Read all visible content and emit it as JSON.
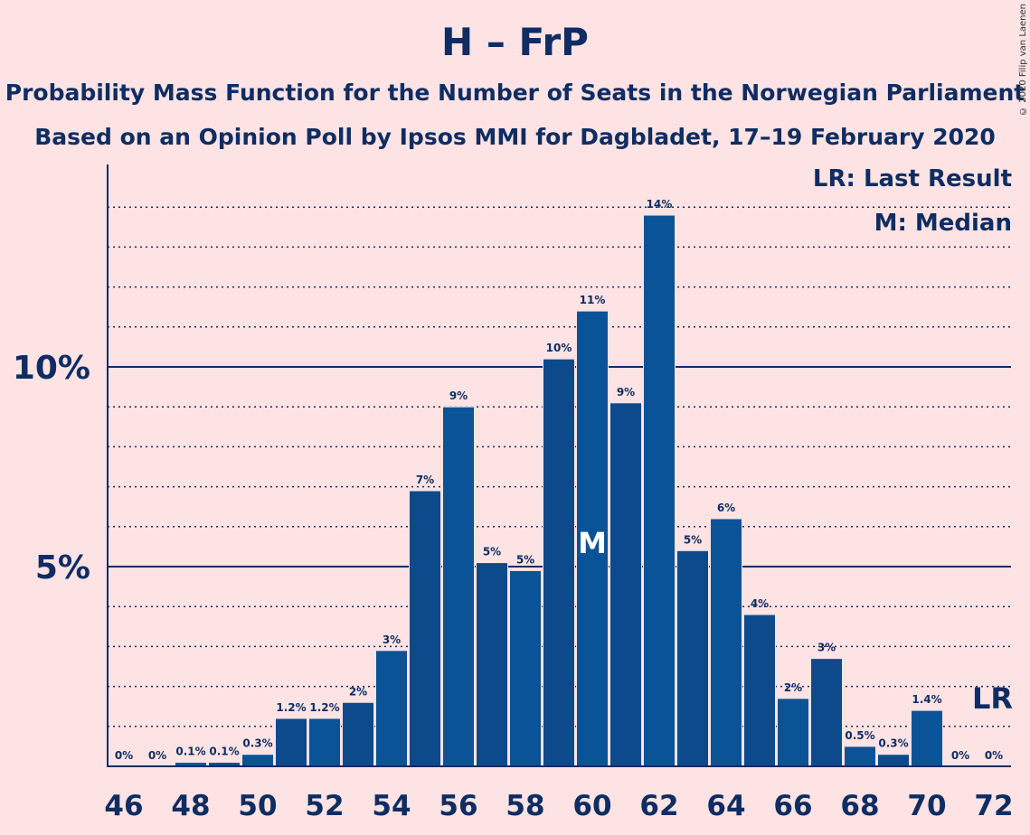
{
  "title": "H – FrP",
  "subtitle1": "Probability Mass Function for the Number of Seats in the Norwegian Parliament",
  "subtitle2": "Based on an Opinion Poll by Ipsos MMI for Dagbladet, 17–19 February 2020",
  "copyright": "© 2020 Filip van Laenen",
  "legend": {
    "last_result": "LR: Last Result",
    "median": "M: Median"
  },
  "colors": {
    "background": "#fde3e3",
    "bar": "#0a5396",
    "bar_alt": "#0d4a8c",
    "text": "#0f2d63"
  },
  "chart_data": {
    "type": "bar",
    "x": [
      46,
      47,
      48,
      49,
      50,
      51,
      52,
      53,
      54,
      55,
      56,
      57,
      58,
      59,
      60,
      61,
      62,
      63,
      64,
      65,
      66,
      67,
      68,
      69,
      70,
      71,
      72
    ],
    "values": [
      0,
      0,
      0.1,
      0.1,
      0.3,
      1.2,
      1.2,
      1.6,
      2.9,
      6.9,
      9.0,
      5.1,
      4.9,
      10.2,
      11.4,
      9.1,
      13.8,
      5.4,
      6.2,
      3.8,
      1.7,
      2.7,
      0.5,
      0.3,
      1.4,
      0,
      0
    ],
    "data_labels": [
      "0%",
      "0%",
      "0.1%",
      "0.1%",
      "0.3%",
      "1.2%",
      "1.2%",
      "2%",
      "3%",
      "7%",
      "9%",
      "5%",
      "5%",
      "10%",
      "11%",
      "9%",
      "14%",
      "5%",
      "6%",
      "4%",
      "2%",
      "3%",
      "0.5%",
      "0.3%",
      "1.4%",
      "0%",
      "0%"
    ],
    "x_tick_labels": [
      "46",
      "48",
      "50",
      "52",
      "54",
      "56",
      "58",
      "60",
      "62",
      "64",
      "66",
      "68",
      "70",
      "72"
    ],
    "y_tick_labels": [
      "5%",
      "10%"
    ],
    "y_ticks": [
      5,
      10
    ],
    "ylim": [
      0,
      15
    ],
    "median_seat": 60,
    "median_label": "M",
    "last_result_seat": 72,
    "last_result_label": "LR",
    "grid": "dotted every 1%, solid at 5% and 10%"
  }
}
